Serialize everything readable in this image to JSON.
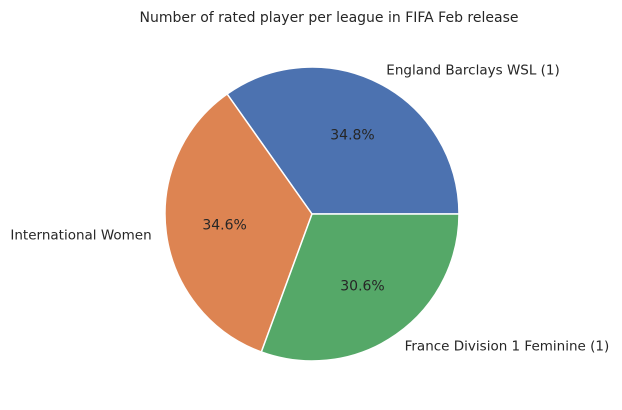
{
  "chart_data": {
    "type": "pie",
    "title": "Number of rated player per league in FIFA Feb release",
    "labels": [
      "England Barclays WSL (1)",
      "International Women",
      "France Division 1 Feminine (1)"
    ],
    "values": [
      34.8,
      34.6,
      30.6
    ],
    "percent_labels": [
      "34.8%",
      "34.6%",
      "30.6%"
    ],
    "colors": [
      "#4C72B0",
      "#DD8452",
      "#55A868"
    ],
    "legend": "none"
  }
}
